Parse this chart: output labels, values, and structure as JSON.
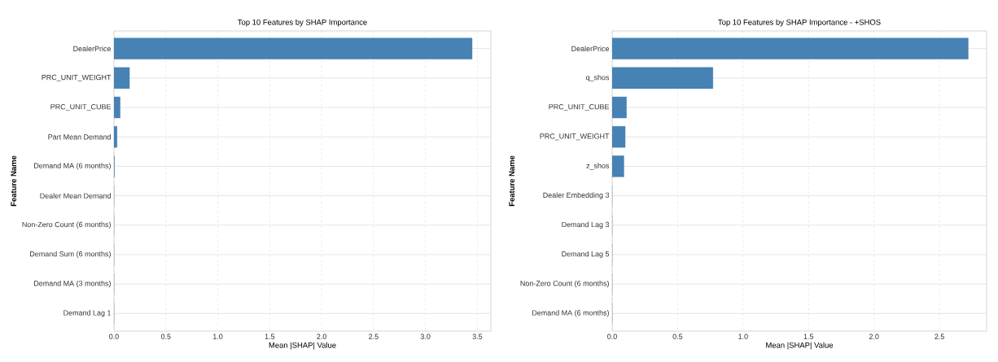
{
  "chart_data": [
    {
      "type": "bar",
      "orientation": "horizontal",
      "title": "Top 10 Features by SHAP Importance",
      "xlabel": "Mean |SHAP| Value",
      "ylabel": "Feature Name",
      "categories": [
        "DealerPrice",
        "PRC_UNIT_WEIGHT",
        "PRC_UNIT_CUBE",
        "Part Mean Demand",
        "Demand MA (6 months)",
        "Dealer Mean Demand",
        "Non-Zero Count (6 months)",
        "Demand Sum (6 months)",
        "Demand MA (3 months)",
        "Demand Lag 1"
      ],
      "values": [
        3.45,
        0.15,
        0.06,
        0.03,
        0.005,
        0,
        0,
        0,
        0,
        0
      ],
      "color": "#4682b4",
      "xlim": [
        0,
        3.63
      ],
      "xticks": [
        {
          "value": 0,
          "label": "0.0"
        },
        {
          "value": 0.5,
          "label": "0.5"
        },
        {
          "value": 1,
          "label": "1.0"
        },
        {
          "value": 1.5,
          "label": "1.5"
        },
        {
          "value": 2,
          "label": "2.0"
        },
        {
          "value": 2.5,
          "label": "2.5"
        },
        {
          "value": 3,
          "label": "3.0"
        },
        {
          "value": 3.5,
          "label": "3.5"
        }
      ],
      "grid": true
    },
    {
      "type": "bar",
      "orientation": "horizontal",
      "title": "Top 10 Features by SHAP Importance - +SHOS",
      "xlabel": "Mean |SHAP| Value",
      "ylabel": "Feature Name",
      "categories": [
        "DealerPrice",
        "q_shos",
        "PRC_UNIT_CUBE",
        "PRC_UNIT_WEIGHT",
        "z_shos",
        "Dealer Embedding 3",
        "Demand Lag 3",
        "Demand Lag 5",
        "Non-Zero Count (6 months)",
        "Demand MA (6 months)"
      ],
      "values": [
        2.72,
        0.77,
        0.11,
        0.1,
        0.09,
        0,
        0,
        0,
        0,
        0
      ],
      "color": "#4682b4",
      "xlim": [
        0,
        2.86
      ],
      "xticks": [
        {
          "value": 0,
          "label": "0.0"
        },
        {
          "value": 0.5,
          "label": "0.5"
        },
        {
          "value": 1,
          "label": "1.0"
        },
        {
          "value": 1.5,
          "label": "1.5"
        },
        {
          "value": 2,
          "label": "2.0"
        },
        {
          "value": 2.5,
          "label": "2.5"
        }
      ],
      "grid": true
    }
  ]
}
